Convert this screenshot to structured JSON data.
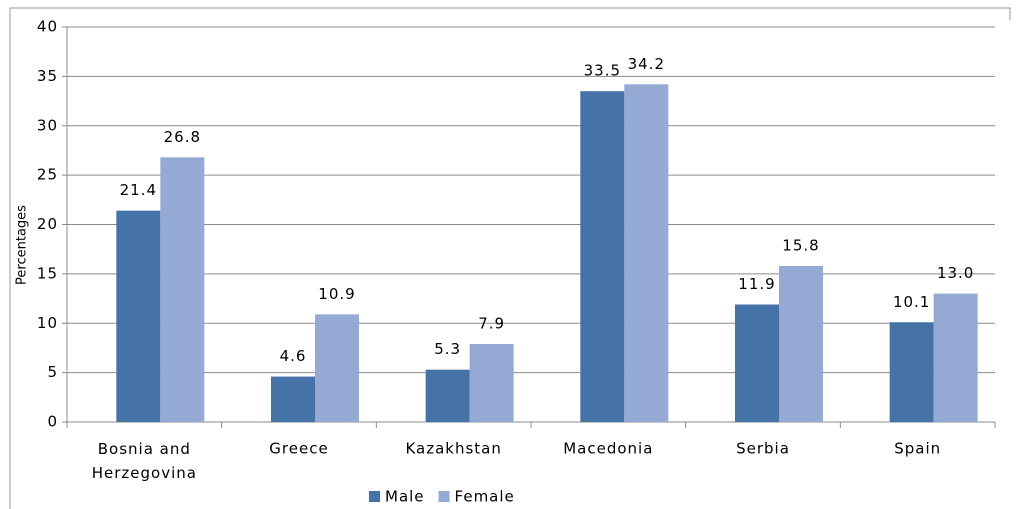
{
  "chart_data": {
    "type": "bar",
    "y_label": "Percentages",
    "categories": [
      "Bosnia and Herzegovina",
      "Greece",
      "Kazakhstan",
      "Macedonia",
      "Serbia",
      "Spain"
    ],
    "series": [
      {
        "name": "Male",
        "color": "#4572a7",
        "values": [
          21.4,
          4.6,
          5.3,
          33.5,
          11.9,
          10.1
        ]
      },
      {
        "name": "Female",
        "color": "#94aad4",
        "values": [
          26.8,
          10.9,
          7.9,
          34.2,
          15.8,
          13.0
        ],
        "value_labels": [
          "26.8",
          "10.9",
          "7.9",
          "34.2",
          "15.8",
          "13.0"
        ]
      }
    ],
    "ylim": [
      0,
      40
    ],
    "yticks": [
      0,
      5,
      10,
      15,
      20,
      25,
      30,
      35,
      40
    ],
    "grid": true,
    "legend": "bottom"
  }
}
